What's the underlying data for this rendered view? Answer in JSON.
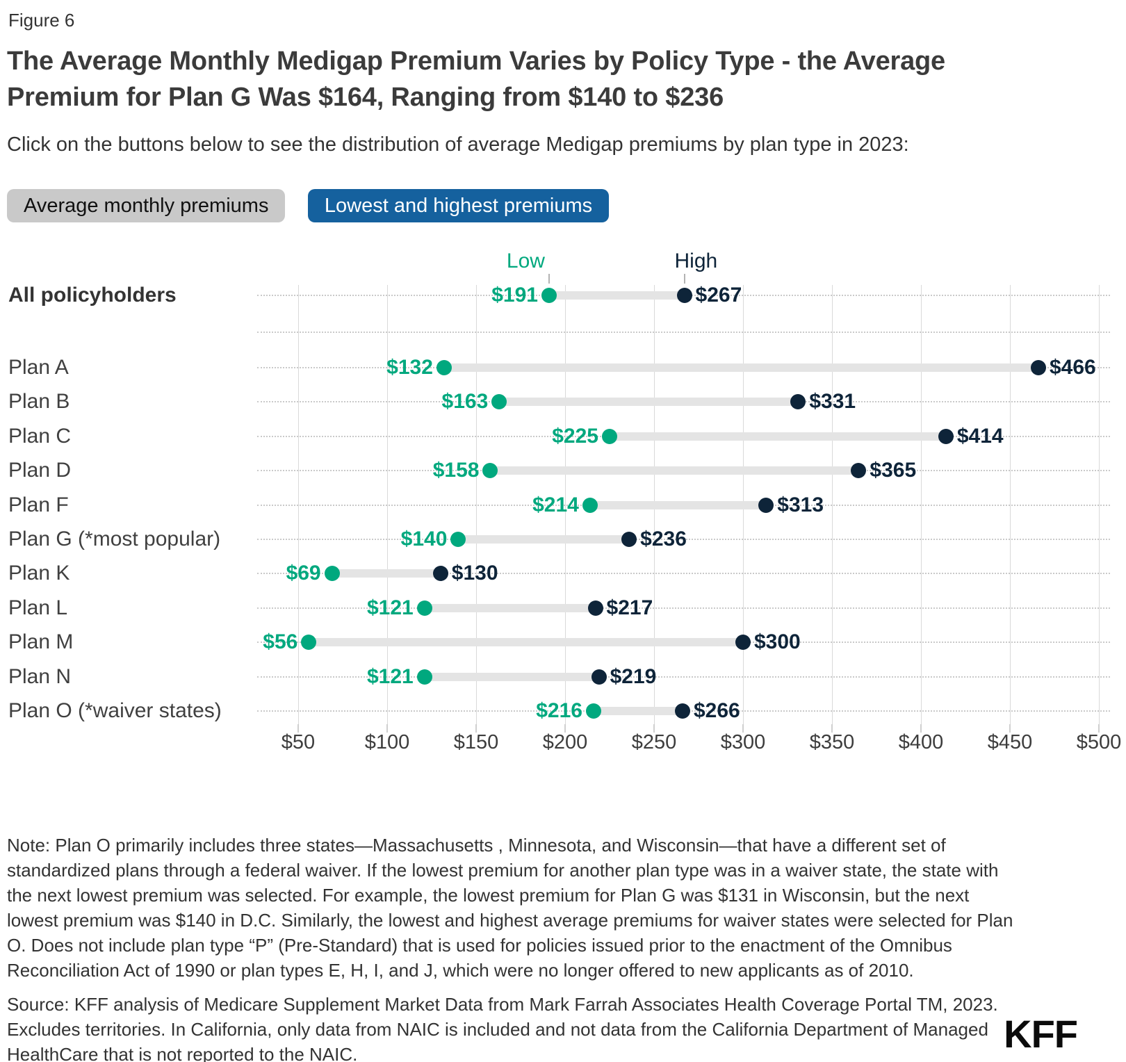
{
  "figure_label": "Figure 6",
  "title": "The Average Monthly Medigap Premium Varies by Policy Type - the Average Premium for Plan G Was $164, Ranging from $140 to $236",
  "subtitle": "Click on the buttons below to see the distribution of average Medigap premiums by plan type in 2023:",
  "buttons": [
    {
      "label": "Average monthly premiums",
      "active": false
    },
    {
      "label": "Lowest and highest premiums",
      "active": true
    }
  ],
  "chart_data": {
    "type": "dumbbell-range",
    "categories": [
      "All policyholders",
      "Plan A",
      "Plan B",
      "Plan C",
      "Plan D",
      "Plan F",
      "Plan G (*most popular)",
      "Plan K",
      "Plan L",
      "Plan M",
      "Plan N",
      "Plan O (*waiver states)"
    ],
    "series": [
      {
        "name": "Low",
        "values": [
          191,
          132,
          163,
          225,
          158,
          214,
          140,
          69,
          121,
          56,
          121,
          216
        ]
      },
      {
        "name": "High",
        "values": [
          267,
          466,
          331,
          414,
          365,
          313,
          236,
          130,
          217,
          300,
          219,
          266
        ]
      }
    ],
    "value_prefix": "$",
    "x_tick_values": [
      50,
      100,
      150,
      200,
      250,
      300,
      350,
      400,
      450,
      500
    ],
    "x_tick_labels": [
      "$50",
      "$100",
      "$150",
      "$200",
      "$250",
      "$300",
      "$350",
      "$400",
      "$450",
      "$500"
    ],
    "xlim": [
      27,
      506
    ],
    "grid": "vertical-gridlines-on",
    "legend_position": "inline-above-first-row",
    "highlighted_category_index": 0
  },
  "note": "Note: Plan O primarily includes three states—Massachusetts , Minnesota, and Wisconsin—that have a different set of standardized plans through a federal waiver. If the lowest premium for another plan type was in a waiver state, the state with the next lowest premium was selected. For example, the lowest premium for Plan G was $131 in Wisconsin, but the next lowest premium was $140 in D.C. Similarly, the lowest and highest average premiums for waiver states were selected for Plan O. Does not include plan type “P” (Pre-Standard) that is used for policies issued prior to the enactment of the Omnibus Reconciliation Act of 1990 or plan types E, H, I, and J, which were no longer offered to new applicants as of 2010.",
  "source": "Source: KFF analysis of Medicare Supplement Market Data from Mark Farrah Associates Health Coverage Portal TM, 2023. Excludes territories. In California, only data from NAIC is included and not data from the California Department of Managed HealthCare that is not reported to the NAIC.",
  "logo": "KFF",
  "colors": {
    "low": "#00a87e",
    "high": "#0e2439",
    "active-button-bg": "#15619e",
    "active-button-text": "#ffffff",
    "inactive-button-bg": "#c9c9c9",
    "inactive-button-text": "#111111",
    "connector": "#e4e4e4",
    "gridline": "#d9d9d9",
    "leader-dotted": "#c9c9c9",
    "logo": "#0b0b0b"
  }
}
